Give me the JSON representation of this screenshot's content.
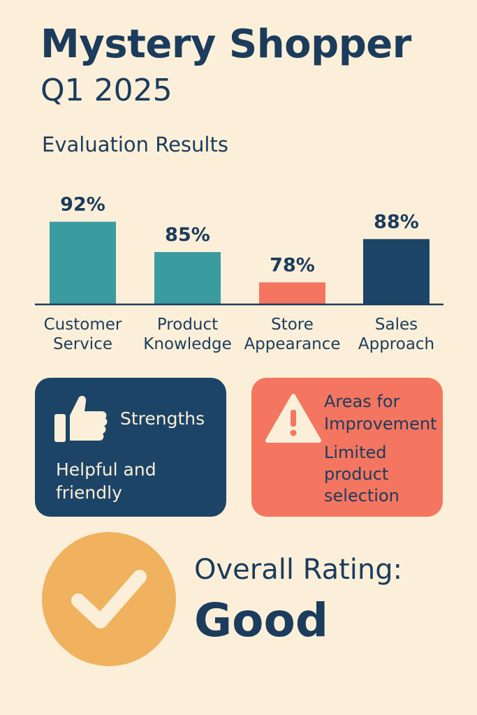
{
  "header": {
    "title": "Mystery Shopper",
    "subtitle": "Q1 2025"
  },
  "chart_data": {
    "type": "bar",
    "title": "Evaluation Results",
    "categories": [
      [
        "Customer",
        "Service"
      ],
      [
        "Product",
        "Knowledge"
      ],
      [
        "Store",
        "Appearance"
      ],
      [
        "Sales",
        "Approach"
      ]
    ],
    "values": [
      92,
      85,
      78,
      88
    ],
    "value_labels": [
      "92%",
      "85%",
      "78%",
      "88%"
    ],
    "bar_colors": [
      "#3a9ba0",
      "#3a9ba0",
      "#f47560",
      "#1c4467"
    ],
    "unit": "%",
    "grid": false,
    "legend": "none"
  },
  "strengths": {
    "title": "Strengths",
    "body": "Helpful and friendly",
    "icon": "thumbs-up-icon",
    "color": "#1c4467"
  },
  "improvement": {
    "title": "Areas for Improvement",
    "body": "Limited product selection",
    "icon": "warning-icon",
    "color": "#f47560"
  },
  "overall": {
    "label": "Overall Rating:",
    "value": "Good",
    "icon": "checkmark-icon",
    "color": "#f0b25e"
  }
}
